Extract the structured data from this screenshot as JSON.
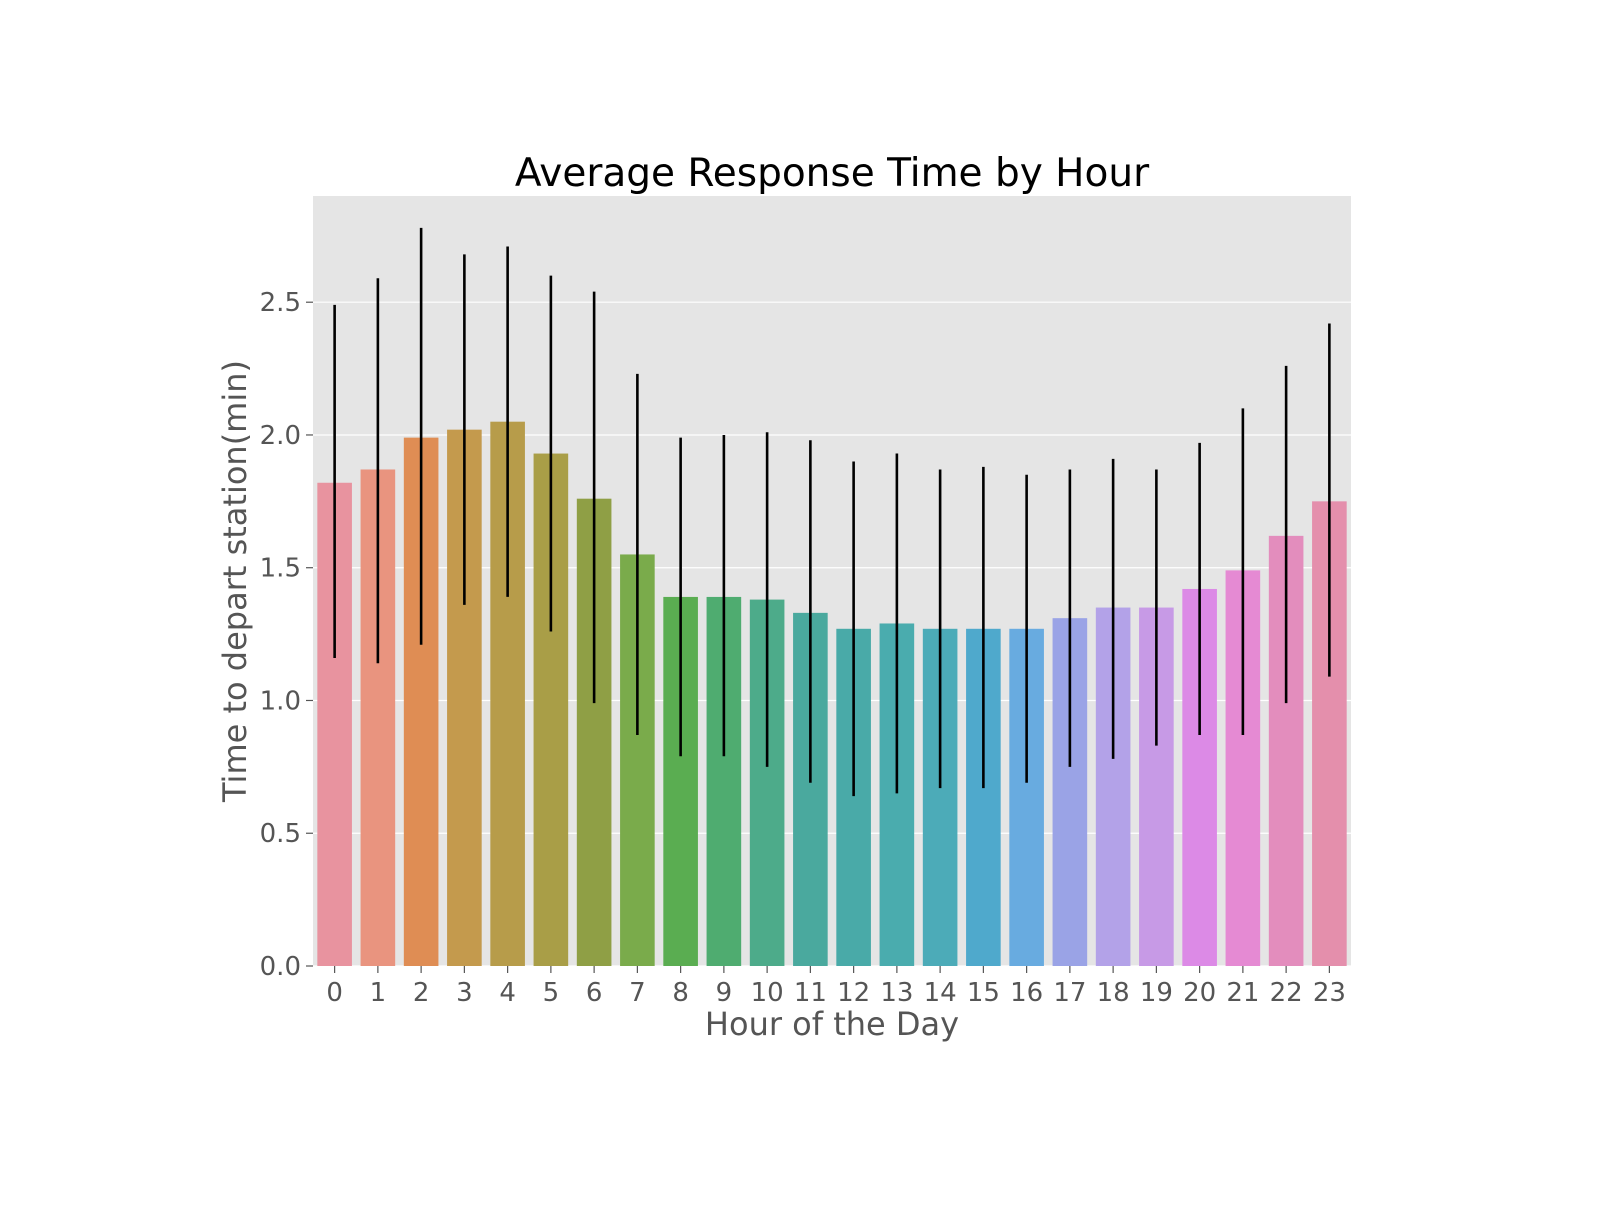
{
  "chart_data": {
    "type": "bar",
    "title": "Average Response Time by Hour",
    "xlabel": "Hour of the Day",
    "ylabel": "Time to depart station(min)",
    "categories": [
      "0",
      "1",
      "2",
      "3",
      "4",
      "5",
      "6",
      "7",
      "8",
      "9",
      "10",
      "11",
      "12",
      "13",
      "14",
      "15",
      "16",
      "17",
      "18",
      "19",
      "20",
      "21",
      "22",
      "23"
    ],
    "values": [
      1.82,
      1.87,
      1.99,
      2.02,
      2.05,
      1.93,
      1.76,
      1.55,
      1.39,
      1.39,
      1.38,
      1.33,
      1.27,
      1.29,
      1.27,
      1.27,
      1.27,
      1.31,
      1.35,
      1.35,
      1.42,
      1.49,
      1.62,
      1.75
    ],
    "error_low": [
      1.16,
      1.14,
      1.21,
      1.36,
      1.39,
      1.26,
      0.99,
      0.87,
      0.79,
      0.79,
      0.75,
      0.69,
      0.64,
      0.65,
      0.67,
      0.67,
      0.69,
      0.75,
      0.78,
      0.83,
      0.87,
      0.87,
      0.99,
      1.09
    ],
    "error_high": [
      2.49,
      2.59,
      2.78,
      2.68,
      2.71,
      2.6,
      2.54,
      2.23,
      1.99,
      2.0,
      2.01,
      1.98,
      1.9,
      1.93,
      1.87,
      1.88,
      1.85,
      1.87,
      1.91,
      1.87,
      1.97,
      2.1,
      2.26,
      2.42
    ],
    "yticks": [
      "0.0",
      "0.5",
      "1.0",
      "1.5",
      "2.0",
      "2.5"
    ],
    "ylim": [
      0,
      2.9
    ],
    "grid": true,
    "legend": false,
    "colors": {
      "plot_background": "#e5e5e5",
      "grid": "#ffffff",
      "error_bar": "#000000",
      "bars": [
        "#e8939f",
        "#e9947f",
        "#df8d54",
        "#c49a4d",
        "#b79c4a",
        "#a99e47",
        "#8f9f45",
        "#7aab4b",
        "#5aad51",
        "#4fac70",
        "#4dab8a",
        "#4aa99e",
        "#49aaa8",
        "#4aacae",
        "#4cabb8",
        "#4fa9cc",
        "#68abe0",
        "#9aa3e6",
        "#b3a2e8",
        "#c79ae6",
        "#dc8ae6",
        "#e58ad3",
        "#e38dbd",
        "#e48fac"
      ]
    }
  }
}
